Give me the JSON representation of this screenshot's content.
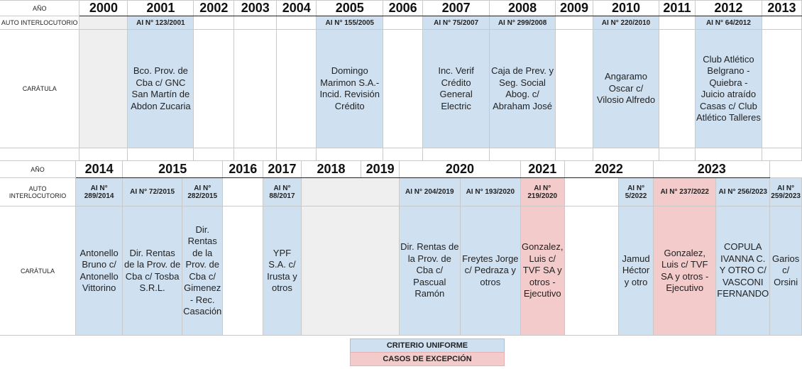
{
  "labels": {
    "year": "AÑO",
    "auto": "AUTO INTERLOCUTORIO",
    "caratula": "CARÁTULA"
  },
  "table1": {
    "years": [
      "2000",
      "2001",
      "2002",
      "2003",
      "2004",
      "2005",
      "2006",
      "2007",
      "2008",
      "2009",
      "2010",
      "2011",
      "2012",
      "2013"
    ],
    "ai": [
      "",
      "AI N° 123/2001",
      "",
      "",
      "",
      "AI N° 155/2005",
      "",
      "AI N° 75/2007",
      "AI N° 299/2008",
      "",
      "AI N° 220/2010",
      "",
      "AI N° 64/2012",
      ""
    ],
    "caratulas": [
      "",
      "Bco. Prov. de Cba c/ GNC San Martín de Abdon Zucaria",
      "",
      "",
      "",
      "Domingo Marimon S.A.- Incid. Revisión Crédito",
      "",
      "Inc. Verif Crédito General Electric",
      "Caja de Prev. y Seg. Social Abog. c/ Abraham José",
      "",
      "Angaramo Oscar c/ Vilosio Alfredo",
      "",
      "Club Atlético Belgrano - Quiebra - Juicio atraído Casas c/ Club Atlético Talleres",
      ""
    ]
  },
  "table2": {
    "years": [
      "2014",
      "2015",
      "2016",
      "2017",
      "2018",
      "2019",
      "2020",
      "2021",
      "2022",
      "2023"
    ],
    "ai": [
      "AI N° 289/2014",
      "AI N° 72/2015",
      "AI N° 282/2015",
      "",
      "AI N° 88/2017",
      "",
      "AI N° 204/2019",
      "AI N° 193/2020",
      "AI N° 219/2020",
      "",
      "AI N° 5/2022",
      "AI N° 237/2022",
      "AI N° 256/2023",
      "AI N° 259/2023"
    ],
    "caratulas": [
      "Antonello Bruno c/ Antonello Vittorino",
      "Dir. Rentas de la Prov. de Cba c/ Tosba S.R.L.",
      "Dir. Rentas de la Prov. de Cba c/ Gimenez - Rec. Casación",
      "",
      "YPF S.A. c/ Irusta y otros",
      "",
      "Dir. Rentas de la Prov. de Cba c/ Pascual Ramón",
      "Freytes Jorge c/ Pedraza y otros",
      "Gonzalez, Luis c/ TVF SA y otros - Ejecutivo",
      "",
      "Jamud Héctor y otro",
      "Gonzalez, Luis c/ TVF SA y otros - Ejecutivo",
      "COPULA IVANNA C. Y OTRO C/ VASCONI FERNANDO",
      "Garios c/ Orsini"
    ]
  },
  "legend": {
    "uniform": "CRITERIO UNIFORME",
    "exception": "CASOS DE EXCEPCIÓN"
  },
  "colors": {
    "uniform": "#cfe0f1",
    "exception": "#f4cbcb",
    "empty": "#efefef"
  }
}
